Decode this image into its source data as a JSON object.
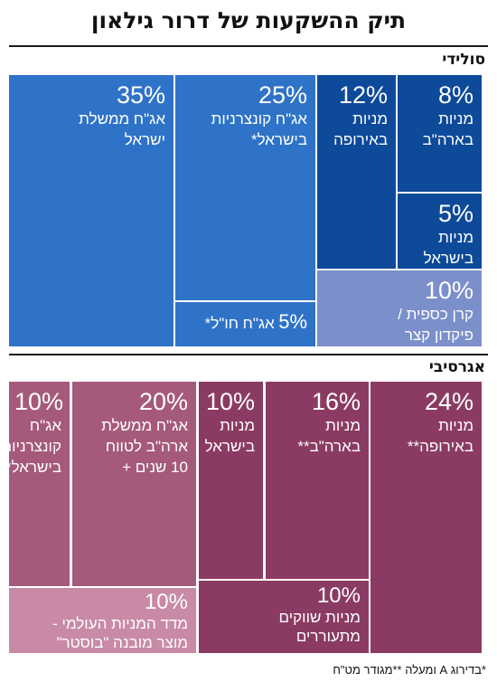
{
  "title": "תיק ההשקעות של דרור גילאון",
  "sections": {
    "solid": "סולידי",
    "aggressive": "אגרסיבי"
  },
  "footnote": "*בדירוג A ומעלה   **מגודר מט\"ח",
  "colors": {
    "solid_blue": "#2f73c8",
    "solid_dark_blue": "#0e4a9a",
    "solid_light_blue": "#7b8fcb",
    "aggr_mauve": "#a65a7b",
    "aggr_plum": "#8b3b63",
    "aggr_pink": "#c98aa7"
  },
  "cells": {
    "s1": {
      "pct": "35%",
      "label": "אג\"ח ממשלת\nישראל"
    },
    "s2": {
      "pct": "25%",
      "label": "אג\"ח קונצרניות\nבישראל*"
    },
    "s3": {
      "pct": "12%",
      "label": "מניות\nבאירופה"
    },
    "s4": {
      "pct": "8%",
      "label": "מניות\nבארה\"ב"
    },
    "s5": {
      "pct": "5%",
      "label": "מניות\nבישראל"
    },
    "s6": {
      "pct": "5%",
      "label": "אג\"ח חו\"ל*"
    },
    "s7": {
      "pct": "10%",
      "label": "קרן כספית /\nפיקדון קצר"
    },
    "a1": {
      "pct": "10%",
      "label": "אג\"ח\nקונצרניות\nבישראל*"
    },
    "a2": {
      "pct": "20%",
      "label": "אג\"ח ממשלת\nארה\"ב לטווח\n10 שנים +"
    },
    "a3": {
      "pct": "10%",
      "label": "מניות\nבישראל"
    },
    "a4": {
      "pct": "16%",
      "label": "מניות\nבארה\"ב**"
    },
    "a5": {
      "pct": "24%",
      "label": "מניות\nבאירופה**"
    },
    "a6": {
      "pct": "10%",
      "label": "מדד המניות העולמי -\nמוצר מובנה \"בוסטר\""
    },
    "a7": {
      "pct": "10%",
      "label": "מניות שווקים\nמתעוררים"
    }
  },
  "chart_data": [
    {
      "type": "treemap",
      "title": "סולידי",
      "categories": [
        "אג\"ח ממשלת ישראל",
        "אג\"ח קונצרניות בישראל*",
        "מניות באירופה",
        "מניות בארה\"ב",
        "מניות בישראל",
        "אג\"ח חו\"ל*",
        "קרן כספית / פיקדון קצר"
      ],
      "values": [
        35,
        25,
        12,
        8,
        5,
        5,
        10
      ]
    },
    {
      "type": "treemap",
      "title": "אגרסיבי",
      "categories": [
        "אג\"ח קונצרניות בישראל*",
        "אג\"ח ממשלת ארה\"ב לטווח 10 שנים +",
        "מניות בישראל",
        "מניות בארה\"ב**",
        "מניות באירופה**",
        "מדד המניות העולמי - מוצר מובנה \"בוסטר\"",
        "מניות שווקים מתעוררים"
      ],
      "values": [
        10,
        20,
        10,
        16,
        24,
        10,
        10
      ]
    }
  ]
}
